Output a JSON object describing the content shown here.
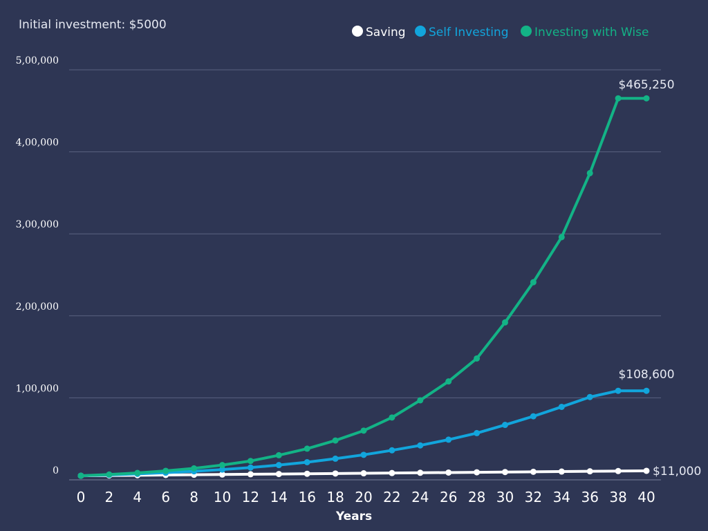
{
  "subtitle": "Initial investment: $5000",
  "chart_data": {
    "type": "line",
    "xlabel": "Years",
    "ylabel": "",
    "ylim": [
      0,
      500000
    ],
    "grid": true,
    "legend_position": "top-right",
    "yticks": [
      0,
      100000,
      200000,
      300000,
      400000,
      500000
    ],
    "ytick_labels": [
      "0",
      "1,00,000",
      "2,00,000",
      "3,00,000",
      "4,00,000",
      "5,00,000"
    ],
    "x": [
      0,
      2,
      4,
      6,
      8,
      10,
      12,
      14,
      16,
      18,
      20,
      22,
      24,
      26,
      28,
      30,
      32,
      34,
      36,
      38,
      40
    ],
    "series": [
      {
        "name": "Saving",
        "color": "#ffffff",
        "values": [
          5000,
          5300,
          5600,
          5900,
          6200,
          6500,
          6800,
          7100,
          7400,
          7700,
          8000,
          8300,
          8600,
          8900,
          9200,
          9500,
          9800,
          10100,
          10400,
          10700,
          11000
        ],
        "end_label": "$11,000"
      },
      {
        "name": "Self Investing",
        "color": "#12a5dc",
        "values": [
          5000,
          6000,
          7300,
          8700,
          10400,
          12500,
          15000,
          18000,
          21500,
          25800,
          30500,
          36000,
          42000,
          49000,
          57000,
          67000,
          77500,
          89000,
          101000,
          108600,
          108600
        ],
        "end_label": "$108,600"
      },
      {
        "name": "Investing with Wise",
        "color": "#13b386",
        "values": [
          5000,
          6500,
          8400,
          11000,
          14000,
          18000,
          23000,
          30000,
          38000,
          48000,
          60000,
          76000,
          97000,
          120000,
          148000,
          192000,
          241000,
          296000,
          374000,
          465250,
          465250
        ],
        "end_label": "$465,250"
      }
    ]
  }
}
